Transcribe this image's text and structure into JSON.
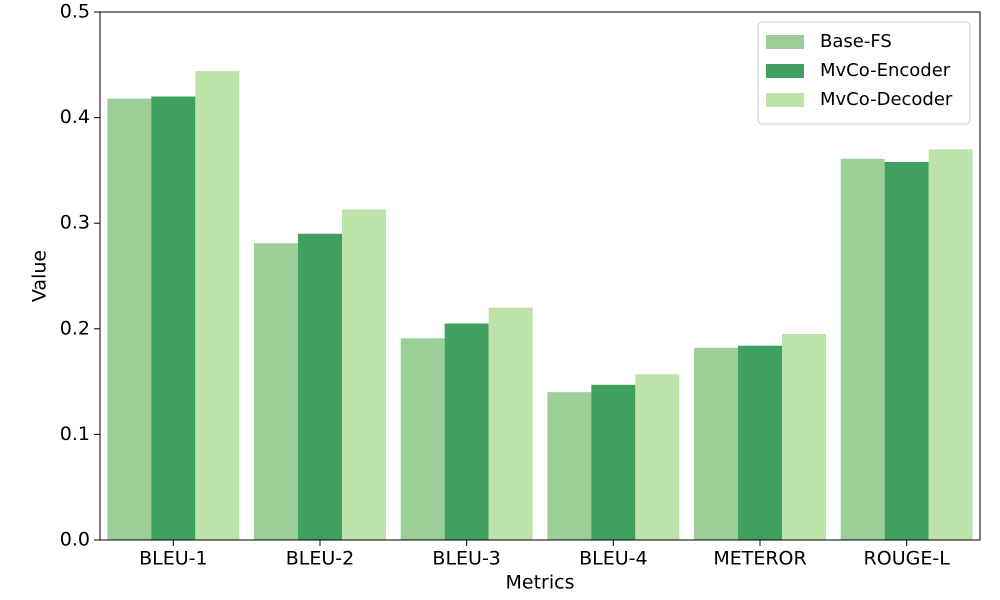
{
  "chart_data": {
    "type": "bar",
    "x_label": "Metrics",
    "y_label": "Value",
    "categories": [
      "BLEU-1",
      "BLEU-2",
      "BLEU-3",
      "BLEU-4",
      "METEROR",
      "ROUGE-L"
    ],
    "series": [
      {
        "name": "Base-FS",
        "color": "#9ccf98",
        "values": [
          0.418,
          0.281,
          0.191,
          0.14,
          0.182,
          0.361
        ]
      },
      {
        "name": "MvCo-Encoder",
        "color": "#3fa060",
        "values": [
          0.42,
          0.29,
          0.205,
          0.147,
          0.184,
          0.358
        ]
      },
      {
        "name": "MvCo-Decoder",
        "color": "#bde3ab",
        "values": [
          0.444,
          0.313,
          0.22,
          0.157,
          0.195,
          0.37
        ]
      }
    ],
    "ylim": [
      0,
      0.5
    ],
    "yticks": [
      {
        "value": 0,
        "label": "0.0"
      },
      0.1,
      0.2,
      0.3,
      0.4,
      0.5
    ],
    "grid": false,
    "legend": "upper right"
  }
}
